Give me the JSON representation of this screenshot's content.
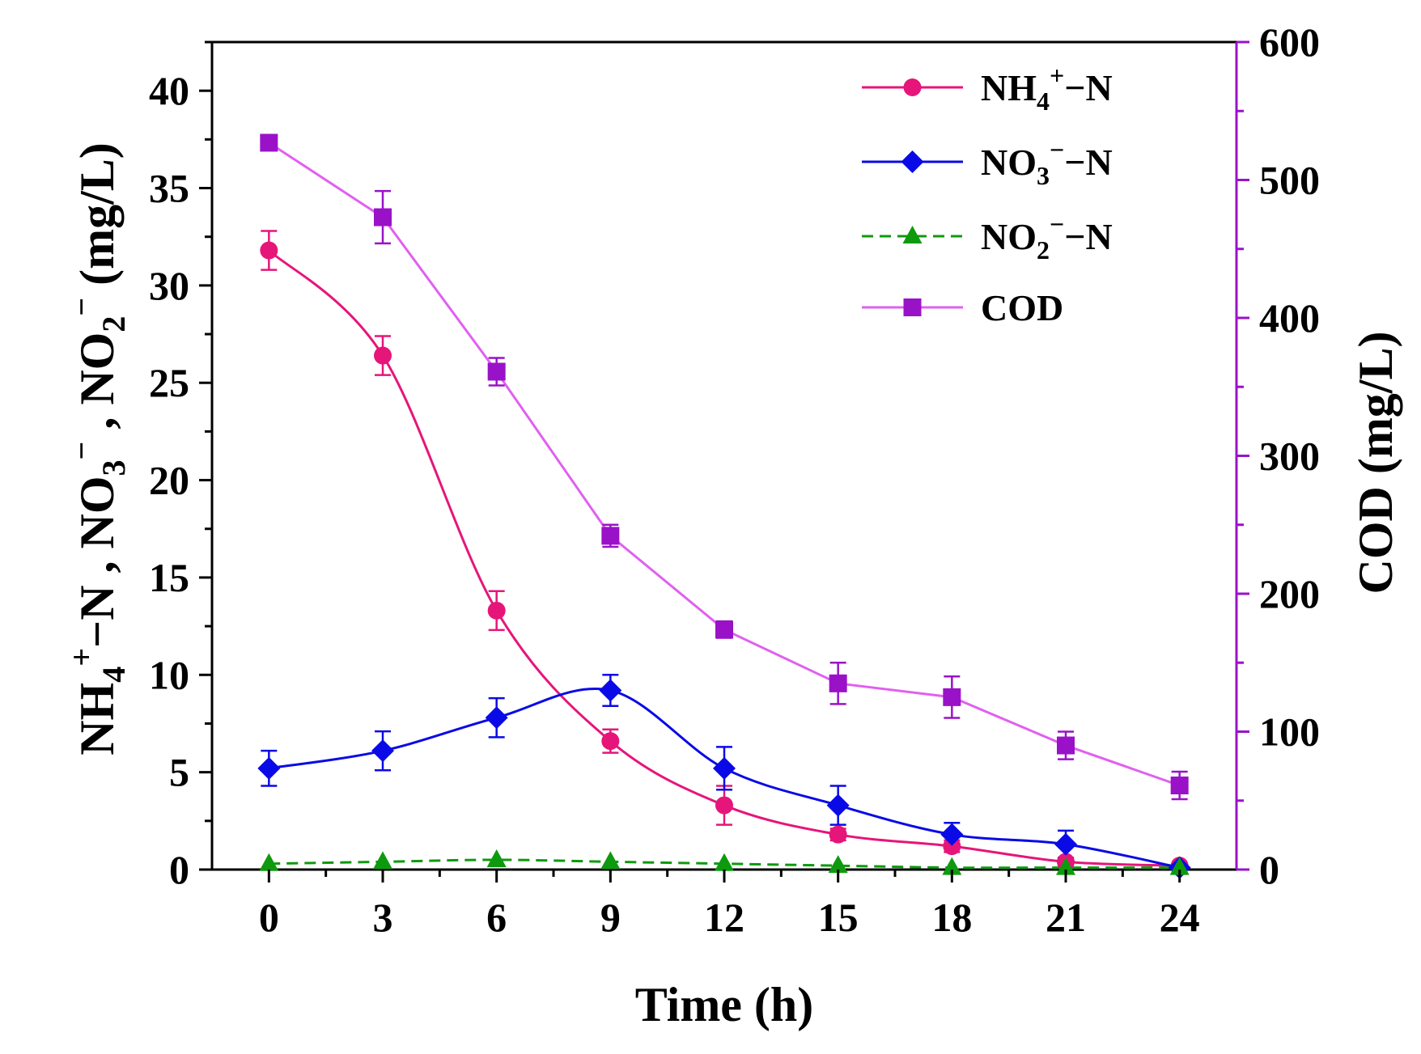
{
  "chart_data": {
    "type": "line",
    "x": [
      0,
      3,
      6,
      9,
      12,
      15,
      18,
      21,
      24
    ],
    "xlabel": "Time (h)",
    "xlim": [
      -1.5,
      25.5
    ],
    "xticks": [
      "0",
      "3",
      "6",
      "9",
      "12",
      "15",
      "18",
      "21",
      "24"
    ],
    "y_left": {
      "label": "NH4+−N , NO3− , NO2− (mg/L)",
      "label_parts": {
        "nh4": "NH",
        "nh4_sub": "4",
        "nh4_sup": "+",
        "nh4_rest": "−N , ",
        "no3": "NO",
        "no3_sub": "3",
        "no3_sup": "−",
        "sep": " , ",
        "no2": "NO",
        "no2_sub": "2",
        "no2_sup": "−",
        "unit": " (mg/L)"
      },
      "ylim": [
        0,
        42.5
      ],
      "ticks": [
        "0",
        "5",
        "10",
        "15",
        "20",
        "25",
        "30",
        "35",
        "40"
      ]
    },
    "y_right": {
      "label": "COD (mg/L)",
      "ylim": [
        0,
        600
      ],
      "ticks": [
        "0",
        "100",
        "200",
        "300",
        "400",
        "500",
        "600"
      ]
    },
    "series": [
      {
        "name": "NH4+−N",
        "legend": {
          "base": "NH",
          "sub": "4",
          "sup": "+",
          "rest": "−N"
        },
        "axis": "left",
        "color": "#e6157a",
        "marker": "circle",
        "line": "solid",
        "values": [
          31.8,
          26.4,
          13.3,
          6.6,
          3.3,
          1.8,
          1.2,
          0.4,
          0.2
        ],
        "errors": [
          1.0,
          1.0,
          1.0,
          0.6,
          1.0,
          0.3,
          0.3,
          0.2,
          0.1
        ]
      },
      {
        "name": "NO3−−N",
        "legend": {
          "base": "NO",
          "sub": "3",
          "sup": "−",
          "rest": "−N"
        },
        "axis": "left",
        "color": "#0a0ae6",
        "marker": "diamond",
        "line": "solid",
        "values": [
          5.2,
          6.1,
          7.8,
          9.2,
          5.2,
          3.3,
          1.8,
          1.3,
          0.1
        ],
        "errors": [
          0.9,
          1.0,
          1.0,
          0.8,
          1.1,
          1.0,
          0.6,
          0.7,
          0.1
        ]
      },
      {
        "name": "NO2−−N",
        "legend": {
          "base": "NO",
          "sub": "2",
          "sup": "−",
          "rest": "−N"
        },
        "axis": "left",
        "color": "#0e9a0e",
        "marker": "triangle",
        "line": "dashed",
        "values": [
          0.3,
          0.4,
          0.5,
          0.4,
          0.3,
          0.2,
          0.1,
          0.1,
          0.1
        ],
        "errors": [
          0,
          0,
          0,
          0,
          0,
          0,
          0,
          0,
          0
        ]
      },
      {
        "name": "COD",
        "legend": {
          "base": "COD",
          "sub": "",
          "sup": "",
          "rest": ""
        },
        "axis": "right",
        "color": "#9a12c8",
        "line_color": "#e060f0",
        "marker": "square",
        "line": "solid",
        "values": [
          527,
          473,
          361,
          242,
          174,
          135,
          125,
          90,
          61
        ],
        "errors": [
          3,
          19,
          10,
          8,
          6,
          15,
          15,
          10,
          10
        ]
      }
    ],
    "legend_position": "top-right",
    "axis_colors": {
      "left": "#000000",
      "right": "#9a12c8"
    },
    "grid": false
  }
}
